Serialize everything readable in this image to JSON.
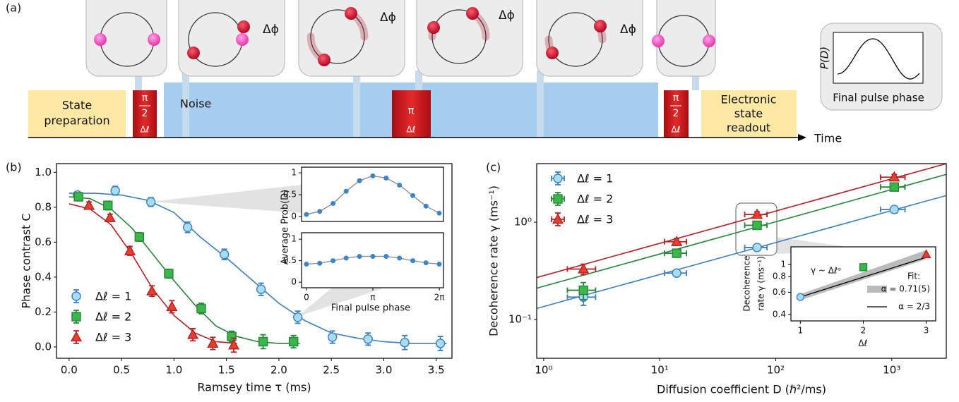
{
  "diagram": {
    "panel": "(a)",
    "state_preparation": [
      "State",
      "preparation"
    ],
    "noise": "Noise",
    "pulses": [
      {
        "top": "π",
        "bottom": "2",
        "label": "Δℓ"
      },
      {
        "top": "π",
        "label": "Δℓ"
      },
      {
        "top": "π",
        "bottom": "2",
        "label": "Δℓ"
      }
    ],
    "readout": [
      "Electronic",
      "state",
      "readout"
    ],
    "time": "Time",
    "delta_phi": [
      "Δϕ",
      "Δϕ",
      "Δϕ",
      "Δϕ"
    ],
    "phase_plot": {
      "y_label": "P(D)",
      "x_label": "Final pulse phase"
    }
  },
  "chart_data": [
    {
      "type": "scatter",
      "panel": "(b)",
      "x_label": "Ramsey time τ (ms)",
      "y_label": "Phase contrast C",
      "xlim": [
        -0.12,
        3.65
      ],
      "ylim": [
        -0.065,
        1.05
      ],
      "xticks": [
        {
          "value": 0,
          "label": "0.0"
        },
        0.5,
        {
          "value": 1,
          "label": "1.0"
        },
        1.5,
        {
          "value": 2,
          "label": "2.0"
        },
        2.5,
        {
          "value": 3,
          "label": "3.0"
        },
        3.5
      ],
      "yticks": [
        {
          "value": 0,
          "label": "0.0"
        },
        0.2,
        0.4,
        0.6,
        0.8,
        {
          "value": 1,
          "label": "1.0"
        }
      ],
      "legend": "lower left",
      "series": [
        {
          "name": "Δℓ = 1",
          "color": "#3a7fc1",
          "fill": "#a8dcf0",
          "marker": "circle",
          "x": [
            0.08,
            0.44,
            0.78,
            1.13,
            1.48,
            1.83,
            2.18,
            2.51,
            2.85,
            3.2,
            3.54
          ],
          "values": [
            0.87,
            0.895,
            0.83,
            0.685,
            0.53,
            0.33,
            0.17,
            0.056,
            0.045,
            0.025,
            0.02
          ],
          "errors": [
            0.02,
            0.025,
            0.025,
            0.03,
            0.03,
            0.035,
            0.035,
            0.035,
            0.035,
            0.04,
            0.04
          ],
          "fit_x": [
            0,
            0.25,
            0.5,
            0.75,
            1,
            1.25,
            1.5,
            1.75,
            2,
            2.25,
            2.5,
            2.75,
            3,
            3.25,
            3.6
          ],
          "fit_values": [
            0.88,
            0.88,
            0.87,
            0.84,
            0.77,
            0.63,
            0.51,
            0.38,
            0.25,
            0.15,
            0.08,
            0.05,
            0.03,
            0.02,
            0.02
          ]
        },
        {
          "name": "Δℓ = 2",
          "color": "#24863a",
          "fill": "#3cb54a",
          "marker": "square",
          "x": [
            0.09,
            0.37,
            0.67,
            0.95,
            1.26,
            1.55,
            1.85,
            2.14
          ],
          "values": [
            0.86,
            0.81,
            0.63,
            0.42,
            0.22,
            0.06,
            0.03,
            0.03
          ],
          "errors": [
            0.02,
            0.025,
            0.025,
            0.025,
            0.03,
            0.03,
            0.04,
            0.035
          ],
          "fit_x": [
            0,
            0.2,
            0.4,
            0.6,
            0.8,
            1,
            1.2,
            1.4,
            1.6,
            1.8,
            2,
            2.2
          ],
          "fit_values": [
            0.86,
            0.85,
            0.79,
            0.68,
            0.53,
            0.38,
            0.24,
            0.12,
            0.06,
            0.03,
            0.02,
            0.02
          ]
        },
        {
          "name": "Δℓ = 3",
          "color": "#b81f24",
          "fill": "#e4402c",
          "marker": "triangle",
          "x": [
            0.19,
            0.39,
            0.58,
            0.79,
            0.98,
            1.18,
            1.37,
            1.57
          ],
          "values": [
            0.81,
            0.74,
            0.55,
            0.32,
            0.23,
            0.07,
            0.02,
            0.01
          ],
          "errors": [
            0.02,
            0.02,
            0.025,
            0.03,
            0.035,
            0.035,
            0.035,
            0.04
          ],
          "fit_x": [
            0,
            0.2,
            0.4,
            0.6,
            0.8,
            1,
            1.2,
            1.4,
            1.6
          ],
          "fit_values": [
            0.82,
            0.79,
            0.7,
            0.53,
            0.33,
            0.18,
            0.08,
            0.03,
            0.02
          ]
        }
      ]
    },
    {
      "type": "line",
      "y_label": "Average Prob(D)",
      "xlim": [
        -0.23,
        6.48
      ],
      "ylim": [
        -0.11,
        1.13
      ],
      "yticks": [
        0,
        0.5,
        1
      ],
      "x": [
        0,
        0.63,
        1.26,
        1.88,
        2.51,
        3.14,
        3.77,
        4.4,
        5.03,
        5.65,
        6.28
      ],
      "series": [
        {
          "color": "#3a86c8",
          "line_color": "#888888",
          "values": [
            0.05,
            0.12,
            0.3,
            0.58,
            0.82,
            0.93,
            0.88,
            0.72,
            0.48,
            0.24,
            0.08
          ]
        }
      ]
    },
    {
      "type": "line",
      "x_label": "Final pulse phase",
      "xlim": [
        -0.23,
        6.48
      ],
      "ylim": [
        -0.13,
        1.15
      ],
      "yticks": [
        0,
        0.5,
        1
      ],
      "xticks": [
        0,
        {
          "value": 3.1416,
          "label": "π"
        },
        {
          "value": 6.2832,
          "label": "2π"
        }
      ],
      "x": [
        0,
        0.63,
        1.26,
        1.88,
        2.51,
        3.14,
        3.77,
        4.4,
        5.03,
        5.65,
        6.28
      ],
      "series": [
        {
          "color": "#3a86c8",
          "line_color": "#888888",
          "values": [
            0.42,
            0.44,
            0.5,
            0.56,
            0.6,
            0.6,
            0.6,
            0.56,
            0.5,
            0.45,
            0.42
          ]
        }
      ]
    },
    {
      "type": "scatter",
      "panel": "(c)",
      "x_label": "Diffusion coefficient D (ℏ²/ms)",
      "y_label": "Decoherence rate γ (ms⁻¹)",
      "log_x": true,
      "log_y": true,
      "xlim": [
        0.87,
        2950
      ],
      "ylim": [
        0.04,
        4.0
      ],
      "xticks": [
        {
          "value": 1,
          "label": "10⁰"
        },
        {
          "value": 10,
          "label": "10¹"
        },
        {
          "value": 100,
          "label": "10²"
        },
        {
          "value": 1000,
          "label": "10³"
        }
      ],
      "yticks": [
        {
          "value": 0.1,
          "label": "10⁻¹"
        },
        {
          "value": 1,
          "label": "10⁰"
        }
      ],
      "legend": "upper left",
      "series": [
        {
          "name": "Δℓ = 1",
          "color": "#3a7fc1",
          "fill": "#a8dcf0",
          "marker": "circle",
          "x": [
            2.2,
            14,
            69,
            1050
          ],
          "values": [
            0.17,
            0.3,
            0.55,
            1.35
          ],
          "errors": [
            0.03,
            0.02,
            0.03,
            0.08
          ],
          "x_err": [
            0.6,
            3,
            15,
            250
          ],
          "fit_x": [
            0.87,
            2950
          ],
          "fit_values": [
            0.13,
            1.88
          ]
        },
        {
          "name": "Δℓ = 2",
          "color": "#24863a",
          "fill": "#3cb54a",
          "marker": "square",
          "x": [
            2.2,
            14,
            69,
            1050
          ],
          "values": [
            0.2,
            0.48,
            0.93,
            2.3
          ],
          "errors": [
            0.04,
            0.04,
            0.06,
            0.15
          ],
          "x_err": [
            0.6,
            3,
            15,
            250
          ],
          "fit_x": [
            0.87,
            2950
          ],
          "fit_values": [
            0.21,
            3.1
          ]
        },
        {
          "name": "Δℓ = 3",
          "color": "#b81f24",
          "fill": "#e4402c",
          "marker": "triangle",
          "x": [
            2.2,
            14,
            69,
            1050
          ],
          "values": [
            0.33,
            0.63,
            1.2,
            2.9
          ],
          "errors": [
            0.04,
            0.05,
            0.08,
            0.2
          ],
          "x_err": [
            0.6,
            3,
            15,
            250
          ],
          "fit_x": [
            0.87,
            2950
          ],
          "fit_values": [
            0.27,
            4.0
          ]
        }
      ]
    },
    {
      "type": "scatter",
      "x_label": "Δℓ",
      "y_label": [
        "Decoherence",
        "rate γ (ms⁻¹)"
      ],
      "log_y": true,
      "xlim": [
        0.85,
        3.15
      ],
      "ylim": [
        0.355,
        1.38
      ],
      "xticks": [
        1,
        2,
        3
      ],
      "yticks": [
        0.4,
        0.6,
        0.8,
        1
      ],
      "annotation": "γ ~ Δℓᵅ",
      "legend_title": "Fit:",
      "fits": [
        {
          "name": "α = 0.71(5)",
          "color": "#bbbbbb",
          "x": [
            1,
            3
          ],
          "lower": [
            0.52,
            1.1
          ],
          "upper": [
            0.58,
            1.3
          ]
        },
        {
          "name": "α = 2/3",
          "color": "#000000",
          "x": [
            1,
            3
          ],
          "values": [
            0.55,
            1.14
          ]
        }
      ],
      "series": [
        {
          "x": [
            1,
            2,
            3
          ],
          "values": [
            0.55,
            0.95,
            1.2
          ],
          "colors": [
            "#3a7fc1",
            "#24863a",
            "#b81f24"
          ],
          "fills": [
            "#a8dcf0",
            "#3cb54a",
            "#e4402c"
          ],
          "markers": [
            "circle",
            "square",
            "triangle"
          ]
        }
      ]
    }
  ]
}
